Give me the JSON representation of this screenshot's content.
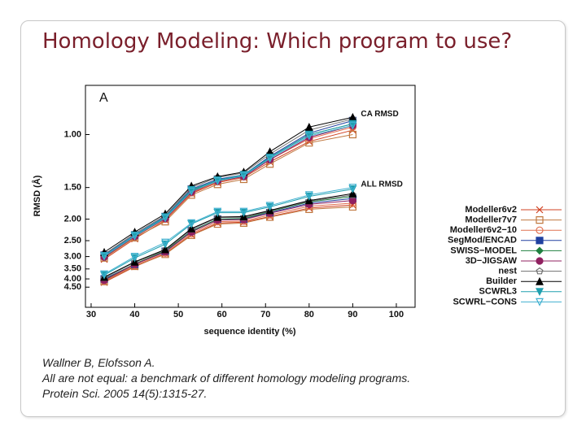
{
  "slide": {
    "title": "Homology Modeling: Which program to use?",
    "citation": [
      "Wallner B, Elofsson A.",
      "All are not equal: a benchmark of different homology modeling programs.",
      "Protein Sci.   2005   14(5):1315-27."
    ]
  },
  "chart_data": {
    "type": "line",
    "panel": "A",
    "xlabel": "sequence identity (%)",
    "ylabel": "RMSD (Å)",
    "yscale": "inverse-sqrt",
    "xlim": [
      28.7,
      104.3
    ],
    "ylim": [
      6.2,
      0.73
    ],
    "xticks": [
      30,
      40,
      50,
      60,
      70,
      80,
      90,
      100
    ],
    "yticks": [
      {
        "value": 1,
        "label": "1.00"
      },
      {
        "value": 1.5,
        "label": "1.50"
      },
      {
        "value": 2,
        "label": "2.00"
      },
      {
        "value": 2.5,
        "label": "2.50"
      },
      {
        "value": 3,
        "label": "3.00"
      },
      {
        "value": 3.5,
        "label": "3.50"
      },
      {
        "value": 4,
        "label": "4.00"
      },
      {
        "value": 4.5,
        "label": "4.50"
      }
    ],
    "curve_labels": [
      "CA RMSD",
      "ALL RMSD"
    ],
    "x": [
      33,
      40,
      47,
      53,
      59,
      65,
      71,
      80,
      90
    ],
    "series": [
      {
        "name": "Modeller6v2",
        "color": "#d04020",
        "marker": "x",
        "values": [
          [
            3.1,
            2.45,
            2.02,
            1.58,
            1.44,
            1.38,
            1.22,
            1.05,
            0.97
          ],
          [
            4.2,
            3.4,
            2.9,
            2.35,
            2.08,
            2.06,
            1.95,
            1.8,
            1.75
          ]
        ]
      },
      {
        "name": "Modeller7v7",
        "color": "#c07840",
        "marker": "square-open",
        "values": [
          [
            3.05,
            2.42,
            2.05,
            1.6,
            1.46,
            1.4,
            1.24,
            1.06,
            1.0
          ],
          [
            4.15,
            3.38,
            2.92,
            2.36,
            2.1,
            2.08,
            1.96,
            1.82,
            1.78
          ]
        ]
      },
      {
        "name": "Modeller6v2−10",
        "color": "#e07050",
        "marker": "circle-open",
        "values": [
          [
            3.0,
            2.4,
            2.0,
            1.57,
            1.43,
            1.37,
            1.2,
            1.03,
            0.95
          ],
          [
            4.1,
            3.35,
            2.88,
            2.32,
            2.05,
            2.04,
            1.92,
            1.77,
            1.72
          ]
        ]
      },
      {
        "name": "SegMod/ENCAD",
        "color": "#2040a0",
        "marker": "square",
        "values": [
          [
            2.95,
            2.35,
            1.95,
            1.52,
            1.4,
            1.35,
            1.17,
            0.99,
            0.91
          ],
          [
            4.0,
            3.3,
            2.82,
            2.25,
            2.0,
            2.0,
            1.88,
            1.72,
            1.65
          ]
        ]
      },
      {
        "name": "SWISS−MODEL",
        "color": "#208040",
        "marker": "diamond",
        "values": [
          [
            2.98,
            2.37,
            1.97,
            1.54,
            1.41,
            1.36,
            1.18,
            1.0,
            0.93
          ],
          [
            4.05,
            3.28,
            2.8,
            2.26,
            2.0,
            1.99,
            1.86,
            1.7,
            1.62
          ]
        ]
      },
      {
        "name": "3D−JIGSAW",
        "color": "#902060",
        "marker": "circle",
        "values": [
          [
            3.02,
            2.39,
            1.99,
            1.56,
            1.42,
            1.37,
            1.2,
            1.02,
            0.94
          ],
          [
            4.08,
            3.3,
            2.84,
            2.28,
            2.02,
            2.01,
            1.89,
            1.74,
            1.68
          ]
        ]
      },
      {
        "name": "nest",
        "color": "#707070",
        "marker": "pentagon-open",
        "values": [
          [
            2.92,
            2.32,
            1.93,
            1.5,
            1.38,
            1.33,
            1.15,
            0.97,
            0.9
          ],
          [
            3.95,
            3.22,
            2.78,
            2.22,
            1.97,
            1.97,
            1.85,
            1.69,
            1.6
          ]
        ]
      },
      {
        "name": "Builder",
        "color": "#000000",
        "marker": "triangle",
        "values": [
          [
            2.85,
            2.28,
            1.9,
            1.48,
            1.37,
            1.32,
            1.13,
            0.95,
            0.89
          ],
          [
            3.9,
            3.2,
            2.76,
            2.2,
            1.96,
            1.95,
            1.84,
            1.68,
            1.58
          ]
        ]
      },
      {
        "name": "SCWRL3",
        "color": "#20a0b0",
        "marker": "triangle-down",
        "values": [
          [
            2.97,
            2.36,
            1.96,
            1.53,
            1.41,
            1.35,
            1.18,
            1.0,
            0.93
          ],
          [
            3.8,
            3.05,
            2.6,
            2.1,
            1.88,
            1.88,
            1.78,
            1.62,
            1.52
          ]
        ]
      },
      {
        "name": "SCWRL−CONS",
        "color": "#40b0d0",
        "marker": "triangle-down-open",
        "values": [
          [
            2.99,
            2.38,
            1.98,
            1.55,
            1.42,
            1.36,
            1.19,
            1.01,
            0.94
          ],
          [
            3.75,
            3.0,
            2.55,
            2.08,
            1.86,
            1.86,
            1.76,
            1.6,
            1.5
          ]
        ]
      }
    ]
  }
}
